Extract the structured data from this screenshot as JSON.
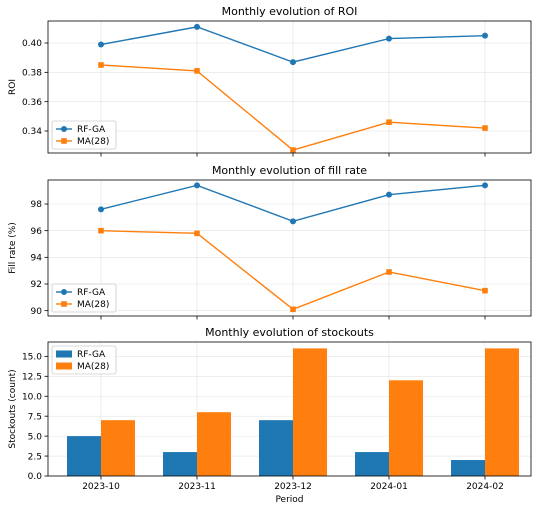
{
  "colors": {
    "rf_ga": "#1f77b4",
    "ma28": "#ff7f0e"
  },
  "chart_data": [
    {
      "type": "line",
      "title": "Monthly evolution of ROI",
      "xlabel": "",
      "ylabel": "ROI",
      "categories": [
        "2023-10",
        "2023-11",
        "2023-12",
        "2024-01",
        "2024-02"
      ],
      "ylim": [
        0.325,
        0.415
      ],
      "yticks": [
        "0.34",
        "0.36",
        "0.38",
        "0.40"
      ],
      "grid": true,
      "legend_position": "lower-left",
      "series": [
        {
          "name": "RF-GA",
          "marker": "circle",
          "color": "#1f77b4",
          "values": [
            0.399,
            0.411,
            0.387,
            0.403,
            0.405
          ]
        },
        {
          "name": "MA(28)",
          "marker": "square",
          "color": "#ff7f0e",
          "values": [
            0.385,
            0.381,
            0.327,
            0.346,
            0.342
          ]
        }
      ]
    },
    {
      "type": "line",
      "title": "Monthly evolution of fill rate",
      "xlabel": "",
      "ylabel": "Fill rate (%)",
      "categories": [
        "2023-10",
        "2023-11",
        "2023-12",
        "2024-01",
        "2024-02"
      ],
      "ylim": [
        89.6,
        99.8
      ],
      "yticks": [
        "90",
        "92",
        "94",
        "96",
        "98"
      ],
      "grid": true,
      "legend_position": "lower-left",
      "series": [
        {
          "name": "RF-GA",
          "marker": "circle",
          "color": "#1f77b4",
          "values": [
            97.6,
            99.4,
            96.7,
            98.7,
            99.4
          ]
        },
        {
          "name": "MA(28)",
          "marker": "square",
          "color": "#ff7f0e",
          "values": [
            96.0,
            95.8,
            90.1,
            92.9,
            91.5
          ]
        }
      ]
    },
    {
      "type": "bar",
      "title": "Monthly evolution of stockouts",
      "xlabel": "Period",
      "ylabel": "Stockouts (count)",
      "categories": [
        "2023-10",
        "2023-11",
        "2023-12",
        "2024-01",
        "2024-02"
      ],
      "ylim": [
        0,
        16.8
      ],
      "yticks": [
        "0.0",
        "2.5",
        "5.0",
        "7.5",
        "10.0",
        "12.5",
        "15.0"
      ],
      "grid": true,
      "legend_position": "upper-left",
      "series": [
        {
          "name": "RF-GA",
          "color": "#1f77b4",
          "values": [
            5,
            3,
            7,
            3,
            2
          ]
        },
        {
          "name": "MA(28)",
          "color": "#ff7f0e",
          "values": [
            7,
            8,
            16,
            12,
            16
          ]
        }
      ]
    }
  ]
}
